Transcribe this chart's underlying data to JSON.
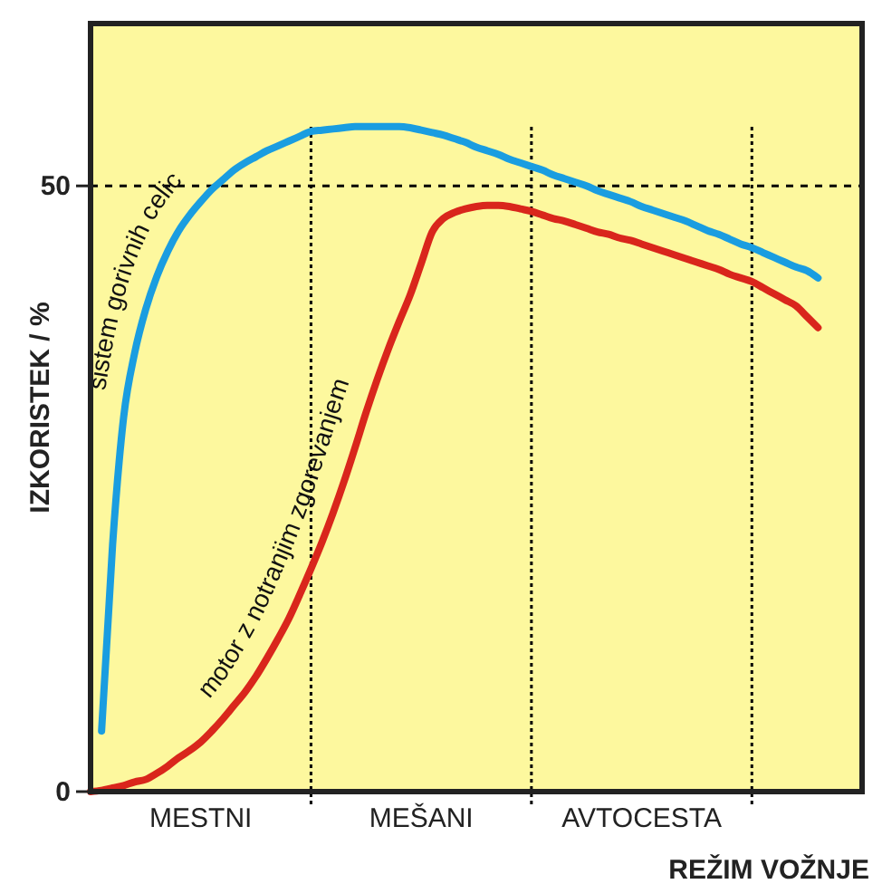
{
  "chart_data": {
    "type": "line",
    "xlabel": "REŽIM VOŽNJE",
    "ylabel": "IZKORISTEK  /  %",
    "categories": [
      null,
      null,
      null,
      null,
      null,
      null,
      null,
      null,
      null,
      null,
      "MESTNI",
      null,
      null,
      null,
      null,
      null,
      null,
      null,
      null,
      null,
      null,
      null,
      null,
      null,
      null,
      null,
      null,
      null,
      null,
      null,
      "MEŠANI",
      null,
      null,
      null,
      null,
      null,
      null,
      null,
      null,
      null,
      null,
      null,
      null,
      null,
      null,
      null,
      null,
      null,
      null,
      null,
      "AVTOCESTA",
      null,
      null,
      null,
      null,
      null,
      null,
      null,
      null,
      null,
      null,
      null,
      null,
      null,
      null,
      null,
      null,
      null,
      null,
      null,
      null
    ],
    "ylim": [
      0,
      63.4
    ],
    "yticks": [
      0,
      50
    ],
    "ref_lines": [
      {
        "axis": "y",
        "value": 50,
        "line_style": "dashed",
        "color": "#000000"
      }
    ],
    "grid": false,
    "marker": "none",
    "line_style": "solid",
    "series": [
      {
        "name": "sistem gorivnih celic",
        "color": "#1a9de0",
        "values": [
          null,
          5,
          20.4,
          30.9,
          36.2,
          39.8,
          42.5,
          44.6,
          46.3,
          47.6,
          48.7,
          49.7,
          50.5,
          51.3,
          51.9,
          52.4,
          52.9,
          53.3,
          53.7,
          54.1,
          54.5,
          54.6,
          54.7,
          54.8,
          54.9,
          54.9,
          54.9,
          54.9,
          54.9,
          54.8,
          54.6,
          54.4,
          54.2,
          53.9,
          53.6,
          53.2,
          52.9,
          52.6,
          52.2,
          51.9,
          51.6,
          51.3,
          50.9,
          50.6,
          50.3,
          50,
          49.6,
          49.3,
          49,
          48.7,
          48.3,
          48,
          47.7,
          47.4,
          47.1,
          46.7,
          46.3,
          46,
          45.6,
          45.2,
          44.9,
          44.5,
          44.1,
          43.7,
          43.3,
          43,
          42.4,
          null,
          null,
          null,
          null
        ]
      },
      {
        "name": "motor z notranjim zgorevanjem",
        "color": "#d9261c",
        "values": [
          0,
          0.1,
          0.3,
          0.5,
          0.8,
          1,
          1.5,
          2.1,
          2.8,
          3.4,
          4.1,
          5,
          6,
          7.1,
          8.2,
          9.5,
          11,
          12.6,
          14.3,
          16.3,
          18.4,
          20.6,
          23,
          25.6,
          28.4,
          31.3,
          34,
          36.5,
          38.8,
          41,
          43.6,
          46.2,
          47.3,
          47.8,
          48.1,
          48.3,
          48.4,
          48.4,
          48.3,
          48.1,
          47.9,
          47.6,
          47.3,
          47.1,
          46.8,
          46.5,
          46.2,
          46,
          45.7,
          45.5,
          45.2,
          44.9,
          44.6,
          44.3,
          44,
          43.7,
          43.4,
          43.1,
          42.7,
          42.4,
          42.1,
          41.6,
          41.1,
          40.6,
          40.1,
          39.2,
          38.3,
          null,
          null,
          null,
          null
        ]
      }
    ]
  }
}
